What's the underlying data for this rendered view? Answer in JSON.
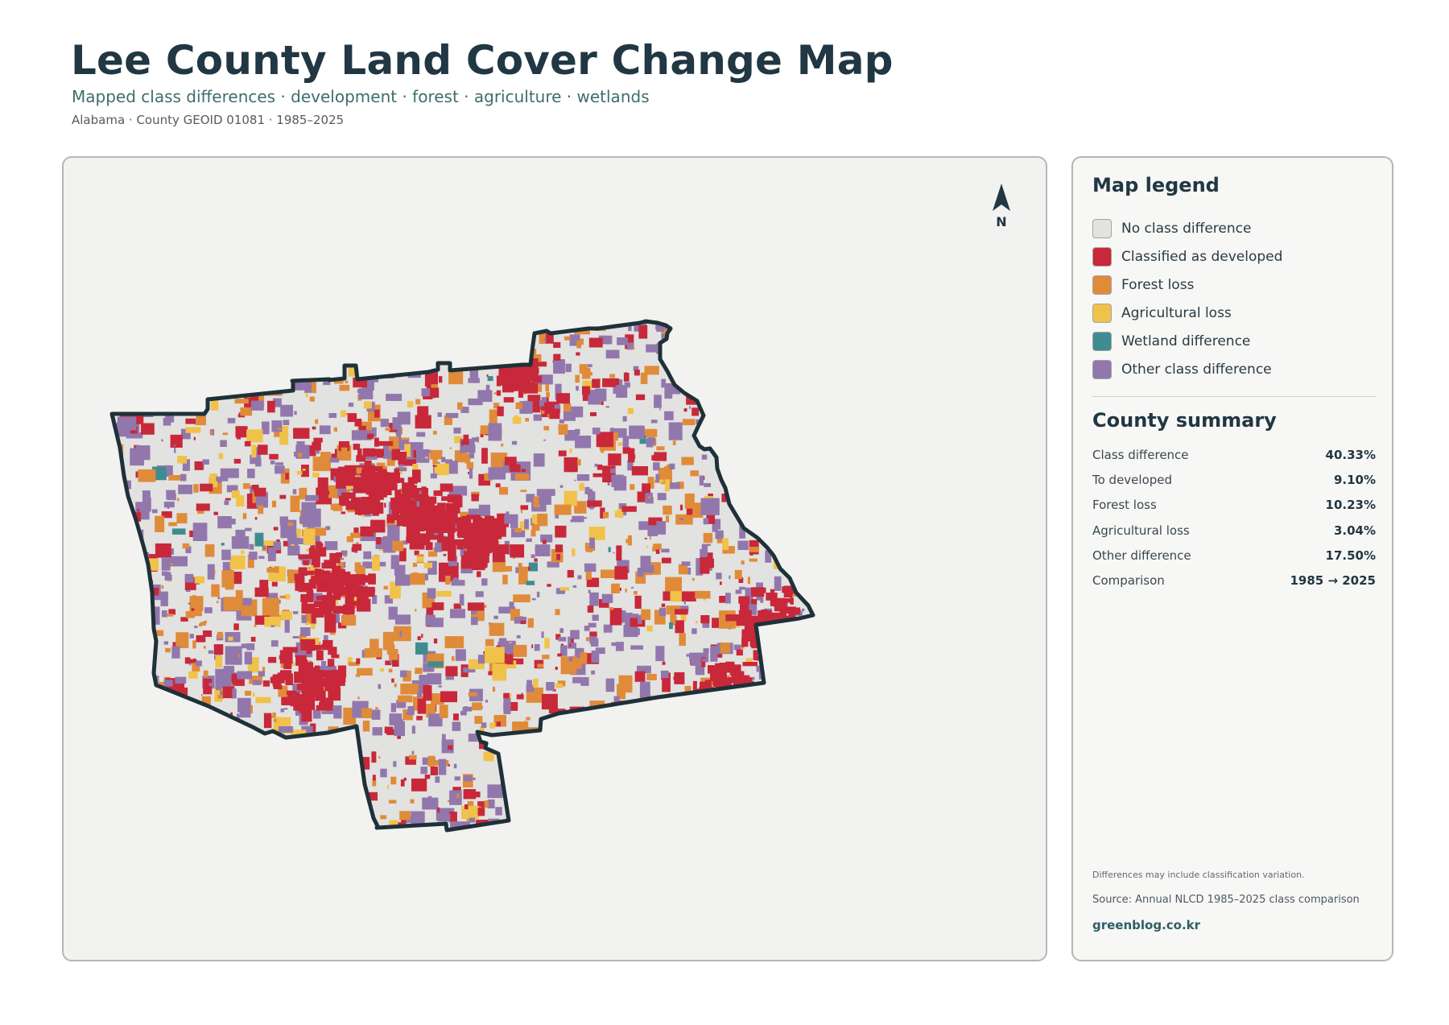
{
  "header": {
    "title": "Lee County Land Cover Change Map",
    "subtitle": "Mapped class differences · development · forest · agriculture · wetlands",
    "meta": "Alabama · County GEOID 01081 · 1985–2025"
  },
  "map": {
    "north_label": "N",
    "north_icon": "north-arrow-icon",
    "county_name": "Lee County"
  },
  "legend": {
    "title": "Map legend",
    "items": [
      {
        "label": "No class difference",
        "color": "#e2e2e0"
      },
      {
        "label": "Classified as developed",
        "color": "#c8283a"
      },
      {
        "label": "Forest loss",
        "color": "#e08b3a"
      },
      {
        "label": "Agricultural loss",
        "color": "#f0c24a"
      },
      {
        "label": "Wetland difference",
        "color": "#3f8c90"
      },
      {
        "label": "Other class difference",
        "color": "#9277ac"
      }
    ]
  },
  "summary": {
    "title": "County summary",
    "rows": [
      {
        "label": "Class difference",
        "value": "40.33%"
      },
      {
        "label": "To developed",
        "value": "9.10%"
      },
      {
        "label": "Forest loss",
        "value": "10.23%"
      },
      {
        "label": "Agricultural loss",
        "value": "3.04%"
      },
      {
        "label": "Other difference",
        "value": "17.50%"
      },
      {
        "label": "Comparison",
        "value": "1985 → 2025"
      }
    ]
  },
  "footer": {
    "note": "Differences may include classification variation.",
    "source": "Source: Annual NLCD 1985–2025 class comparison",
    "site": "greenblog.co.kr"
  },
  "colors": {
    "title": "#213743",
    "subtitle": "#3c6e6c",
    "panel_bg": "#f2f2f0",
    "boundary": "#1f3138"
  }
}
